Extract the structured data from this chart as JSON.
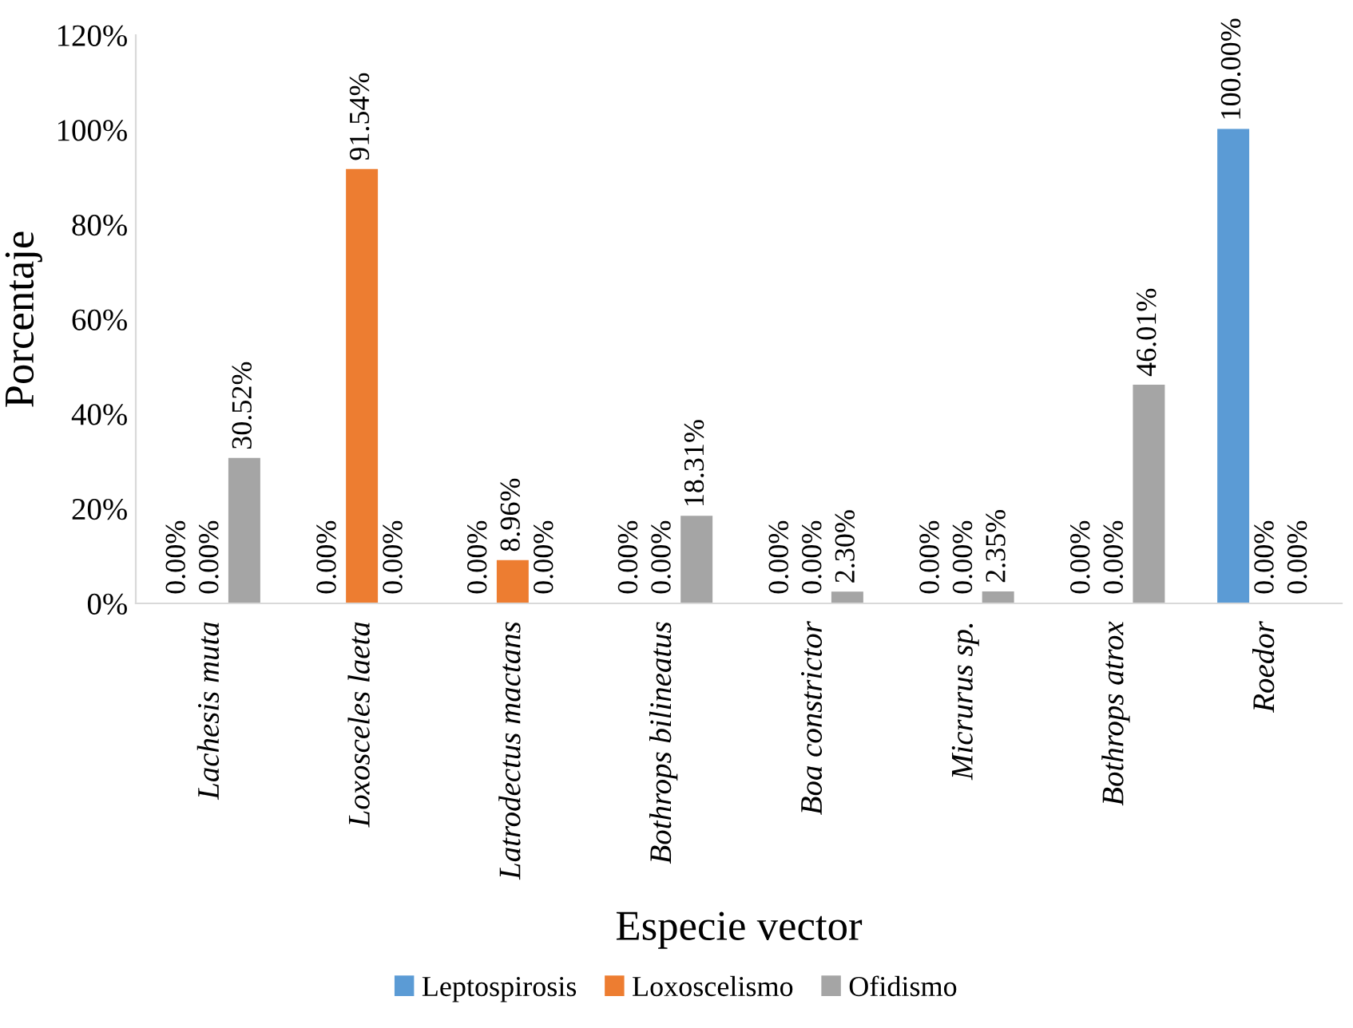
{
  "chart_data": {
    "type": "bar",
    "categories": [
      "Lachesis muta",
      "Loxosceles laeta",
      "Latrodectus mactans",
      "Bothrops bilineatus",
      "Boa constrictor",
      "Micrurus sp.",
      "Bothrops atrox",
      "Roedor"
    ],
    "series": [
      {
        "name": "Leptospirosis",
        "color": "#5b9bd5",
        "values": [
          0,
          0,
          0,
          0,
          0,
          0,
          0,
          100
        ],
        "value_labels": [
          "0.00%",
          "0.00%",
          "0.00%",
          "0.00%",
          "0.00%",
          "0.00%",
          "0.00%",
          "100.00%"
        ]
      },
      {
        "name": "Loxoscelismo",
        "color": "#ed7d31",
        "values": [
          0,
          91.54,
          8.96,
          0,
          0,
          0,
          0,
          0
        ],
        "value_labels": [
          "0.00%",
          "91.54%",
          "8.96%",
          "0.00%",
          "0.00%",
          "0.00%",
          "0.00%",
          "0.00%"
        ]
      },
      {
        "name": "Ofidismo",
        "color": "#a5a5a5",
        "values": [
          30.52,
          0,
          0,
          18.31,
          2.3,
          2.35,
          46.01,
          0
        ],
        "value_labels": [
          "30.52%",
          "0.00%",
          "0.00%",
          "18.31%",
          "2.30%",
          "2.35%",
          "46.01%",
          "0.00%"
        ]
      }
    ],
    "xlabel": "Especie vector",
    "ylabel": "Porcentaje",
    "ylim": [
      0,
      120
    ],
    "yticks": [
      {
        "value": 0,
        "label": "0%"
      },
      {
        "value": 20,
        "label": "20%"
      },
      {
        "value": 40,
        "label": "40%"
      },
      {
        "value": 60,
        "label": "60%"
      },
      {
        "value": 80,
        "label": "80%"
      },
      {
        "value": 100,
        "label": "100%"
      },
      {
        "value": 120,
        "label": "120%"
      }
    ],
    "grid": false,
    "legend": "bottom"
  }
}
